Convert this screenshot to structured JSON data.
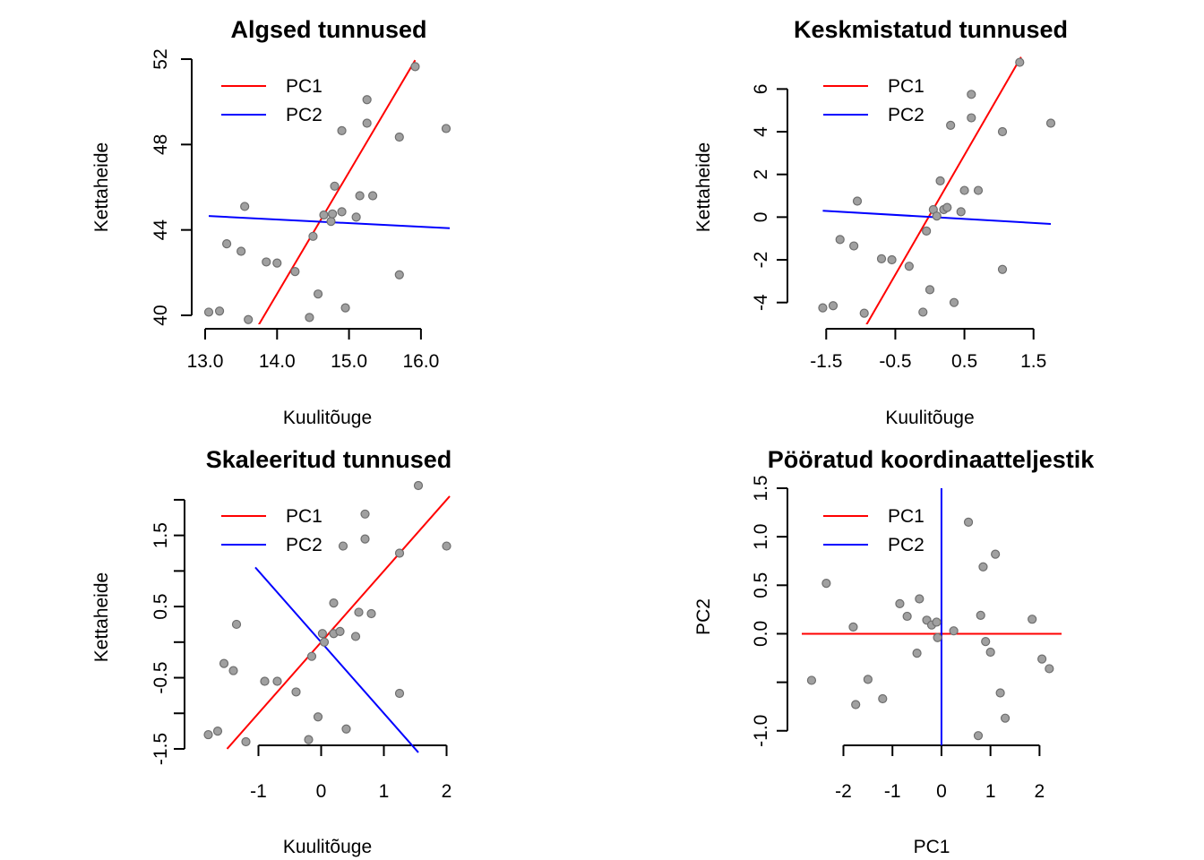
{
  "chart_data": [
    {
      "type": "scatter",
      "title": "Algsed tunnused",
      "xlabel": "Kuulitõuge",
      "ylabel": "Kettaheide",
      "xlim": [
        13.0,
        16.4
      ],
      "ylim": [
        40,
        52
      ],
      "xticks": [
        13.0,
        14.0,
        15.0,
        16.0
      ],
      "xtick_labels": [
        "13.0",
        "14.0",
        "15.0",
        "16.0"
      ],
      "yticks": [
        40,
        44,
        48,
        52
      ],
      "ytick_labels": [
        "40",
        "44",
        "48",
        "52"
      ],
      "legend": [
        {
          "label": "PC1",
          "color": "#ff0000"
        },
        {
          "label": "PC2",
          "color": "#0000ff"
        }
      ],
      "points": [
        [
          13.05,
          40.15
        ],
        [
          13.2,
          40.2
        ],
        [
          13.3,
          43.35
        ],
        [
          13.5,
          43.0
        ],
        [
          13.55,
          45.1
        ],
        [
          13.6,
          39.8
        ],
        [
          13.85,
          42.5
        ],
        [
          14.0,
          42.45
        ],
        [
          14.25,
          42.05
        ],
        [
          14.45,
          39.9
        ],
        [
          14.5,
          43.7
        ],
        [
          14.57,
          41.0
        ],
        [
          14.65,
          44.7
        ],
        [
          14.75,
          44.4
        ],
        [
          14.77,
          44.75
        ],
        [
          14.8,
          46.05
        ],
        [
          14.9,
          44.85
        ],
        [
          14.9,
          48.65
        ],
        [
          14.95,
          40.35
        ],
        [
          15.1,
          44.6
        ],
        [
          15.15,
          45.6
        ],
        [
          15.25,
          50.1
        ],
        [
          15.25,
          49.0
        ],
        [
          15.33,
          45.6
        ],
        [
          15.7,
          48.35
        ],
        [
          15.7,
          41.9
        ],
        [
          15.92,
          51.65
        ],
        [
          16.35,
          48.75
        ]
      ],
      "lines": [
        {
          "name": "PC1",
          "color": "#ff0000",
          "x": [
            13.7,
            15.92
          ],
          "y": [
            39.3,
            51.95
          ]
        },
        {
          "name": "PC2",
          "color": "#0000ff",
          "x": [
            13.05,
            16.4
          ],
          "y": [
            44.65,
            44.08
          ]
        }
      ]
    },
    {
      "type": "scatter",
      "title": "Keskmistatud tunnused",
      "xlabel": "Kuulitõuge",
      "ylabel": "Kettaheide",
      "xlim": [
        -1.75,
        1.75
      ],
      "ylim": [
        -4.6,
        7.4
      ],
      "xticks": [
        -1.5,
        -0.5,
        0.5,
        1.5
      ],
      "xtick_labels": [
        "-1.5",
        "-0.5",
        "0.5",
        "1.5"
      ],
      "yticks": [
        -4,
        -2,
        0,
        2,
        4,
        6
      ],
      "ytick_labels": [
        "-4",
        "-2",
        "0",
        "2",
        "4",
        "6"
      ],
      "legend": [
        {
          "label": "PC1",
          "color": "#ff0000"
        },
        {
          "label": "PC2",
          "color": "#0000ff"
        }
      ],
      "points": [
        [
          -1.55,
          -4.25
        ],
        [
          -1.4,
          -4.15
        ],
        [
          -1.3,
          -1.05
        ],
        [
          -1.1,
          -1.35
        ],
        [
          -1.05,
          0.75
        ],
        [
          -0.95,
          -4.5
        ],
        [
          -0.7,
          -1.95
        ],
        [
          -0.55,
          -2.0
        ],
        [
          -0.3,
          -2.3
        ],
        [
          -0.1,
          -4.45
        ],
        [
          -0.05,
          -0.65
        ],
        [
          0.0,
          -3.4
        ],
        [
          0.05,
          0.35
        ],
        [
          0.1,
          0.05
        ],
        [
          0.15,
          1.7
        ],
        [
          0.2,
          0.35
        ],
        [
          0.25,
          0.45
        ],
        [
          0.3,
          4.3
        ],
        [
          0.35,
          -4.0
        ],
        [
          0.45,
          0.25
        ],
        [
          0.5,
          1.25
        ],
        [
          0.6,
          5.75
        ],
        [
          0.6,
          4.65
        ],
        [
          0.7,
          1.25
        ],
        [
          1.05,
          4.0
        ],
        [
          1.05,
          -2.45
        ],
        [
          1.3,
          7.25
        ],
        [
          1.75,
          4.4
        ]
      ],
      "lines": [
        {
          "name": "PC1",
          "color": "#ff0000",
          "x": [
            -0.92,
            1.32
          ],
          "y": [
            -5.05,
            7.5
          ]
        },
        {
          "name": "PC2",
          "color": "#0000ff",
          "x": [
            -1.55,
            1.75
          ],
          "y": [
            0.3,
            -0.32
          ]
        }
      ]
    },
    {
      "type": "scatter",
      "title": "Skaleeritud tunnused",
      "xlabel": "Kuulitõuge",
      "ylabel": "Kettaheide",
      "xlim": [
        -1.85,
        2.05
      ],
      "ylim": [
        -1.45,
        2.15
      ],
      "xticks": [
        -1,
        0,
        1,
        2
      ],
      "xtick_labels": [
        "-1",
        "0",
        "1",
        "2"
      ],
      "yticks": [
        -1.5,
        -1,
        -0.5,
        0,
        0.5,
        1,
        1.5,
        2
      ],
      "ytick_labels": [
        "-1.5",
        "",
        "-0.5",
        "",
        "0.5",
        "",
        "1.5",
        ""
      ],
      "legend": [
        {
          "label": "PC1",
          "color": "#ff0000"
        },
        {
          "label": "PC2",
          "color": "#0000ff"
        }
      ],
      "points": [
        [
          -1.8,
          -1.3
        ],
        [
          -1.65,
          -1.25
        ],
        [
          -1.55,
          -0.3
        ],
        [
          -1.4,
          -0.4
        ],
        [
          -1.35,
          0.25
        ],
        [
          -1.2,
          -1.4
        ],
        [
          -0.9,
          -0.55
        ],
        [
          -0.7,
          -0.55
        ],
        [
          -0.4,
          -0.7
        ],
        [
          -0.2,
          -1.37
        ],
        [
          -0.15,
          -0.2
        ],
        [
          -0.05,
          -1.05
        ],
        [
          0.02,
          0.12
        ],
        [
          0.05,
          0.0
        ],
        [
          0.2,
          0.55
        ],
        [
          0.2,
          0.12
        ],
        [
          0.3,
          0.15
        ],
        [
          0.35,
          1.35
        ],
        [
          0.4,
          -1.22
        ],
        [
          0.55,
          0.08
        ],
        [
          0.6,
          0.42
        ],
        [
          0.7,
          1.8
        ],
        [
          0.7,
          1.45
        ],
        [
          0.8,
          0.4
        ],
        [
          1.25,
          1.25
        ],
        [
          1.25,
          -0.72
        ],
        [
          1.55,
          2.2
        ],
        [
          2.0,
          1.35
        ]
      ],
      "lines": [
        {
          "name": "PC1",
          "color": "#ff0000",
          "x": [
            -1.5,
            2.05
          ],
          "y": [
            -1.5,
            2.05
          ]
        },
        {
          "name": "PC2",
          "color": "#0000ff",
          "x": [
            -1.05,
            1.55
          ],
          "y": [
            1.05,
            -1.55
          ]
        }
      ]
    },
    {
      "type": "scatter",
      "title": "Pööratud koordinaatteljestik",
      "xlabel": "PC1",
      "ylabel": "PC2",
      "xlim": [
        -2.85,
        2.45
      ],
      "ylim": [
        -1.15,
        1.5
      ],
      "xticks": [
        -2,
        -1,
        0,
        1,
        2
      ],
      "xtick_labels": [
        "-2",
        "-1",
        "0",
        "1",
        "2"
      ],
      "yticks": [
        -1.0,
        -0.5,
        0.0,
        0.5,
        1.0,
        1.5
      ],
      "ytick_labels": [
        "-1.0",
        "",
        "0.0",
        "0.5",
        "1.0",
        "1.5"
      ],
      "legend": [
        {
          "label": "PC1",
          "color": "#ff0000"
        },
        {
          "label": "PC2",
          "color": "#0000ff"
        }
      ],
      "points": [
        [
          -2.65,
          -0.48
        ],
        [
          -2.35,
          0.52
        ],
        [
          -1.8,
          0.07
        ],
        [
          -1.75,
          -0.73
        ],
        [
          -1.5,
          -0.47
        ],
        [
          -1.2,
          -0.67
        ],
        [
          -0.85,
          0.31
        ],
        [
          -0.7,
          0.18
        ],
        [
          -0.5,
          -0.2
        ],
        [
          -0.45,
          0.36
        ],
        [
          -0.3,
          0.14
        ],
        [
          -0.2,
          0.09
        ],
        [
          -0.1,
          0.12
        ],
        [
          -0.08,
          -0.04
        ],
        [
          0.25,
          0.03
        ],
        [
          0.55,
          1.15
        ],
        [
          0.75,
          -1.05
        ],
        [
          0.8,
          0.19
        ],
        [
          0.85,
          0.69
        ],
        [
          0.9,
          -0.08
        ],
        [
          1.0,
          -0.19
        ],
        [
          1.1,
          0.82
        ],
        [
          1.2,
          -0.61
        ],
        [
          1.3,
          -0.87
        ],
        [
          1.85,
          0.15
        ],
        [
          2.05,
          -0.26
        ],
        [
          2.2,
          -0.36
        ]
      ],
      "lines": [
        {
          "name": "PC1",
          "color": "#ff0000",
          "x": [
            -2.85,
            2.45
          ],
          "y": [
            0.0,
            0.0
          ]
        },
        {
          "name": "PC2",
          "color": "#0000ff",
          "x": [
            0.0,
            0.0
          ],
          "y": [
            -1.15,
            1.5
          ]
        }
      ]
    }
  ]
}
